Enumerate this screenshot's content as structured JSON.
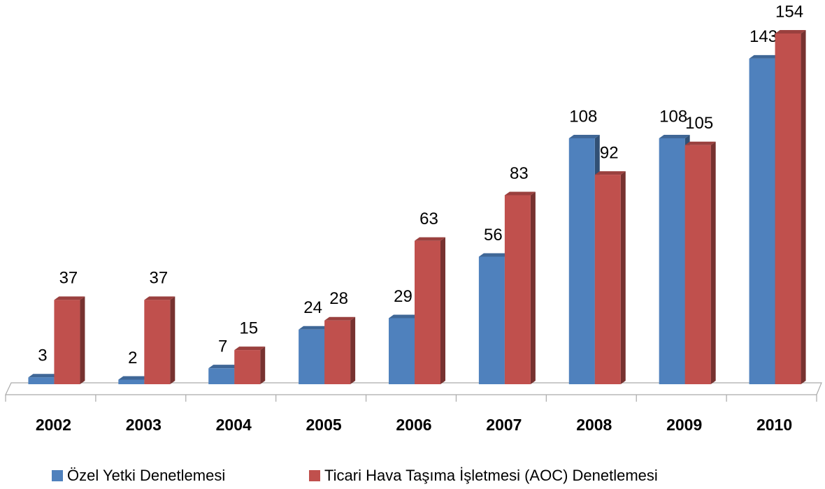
{
  "chart_data": {
    "type": "bar3d",
    "categories": [
      "2002",
      "2003",
      "2004",
      "2005",
      "2006",
      "2007",
      "2008",
      "2009",
      "2010"
    ],
    "series": [
      {
        "name": "Özel Yetki Denetlemesi",
        "color": "#4f81bd",
        "values": [
          3,
          2,
          7,
          24,
          29,
          56,
          108,
          108,
          143
        ]
      },
      {
        "name": "Ticari Hava Taşıma İşletmesi (AOC) Denetlemesi",
        "color": "#c0504d",
        "values": [
          37,
          37,
          15,
          28,
          63,
          83,
          92,
          105,
          154
        ]
      }
    ],
    "legend": "bottom"
  }
}
